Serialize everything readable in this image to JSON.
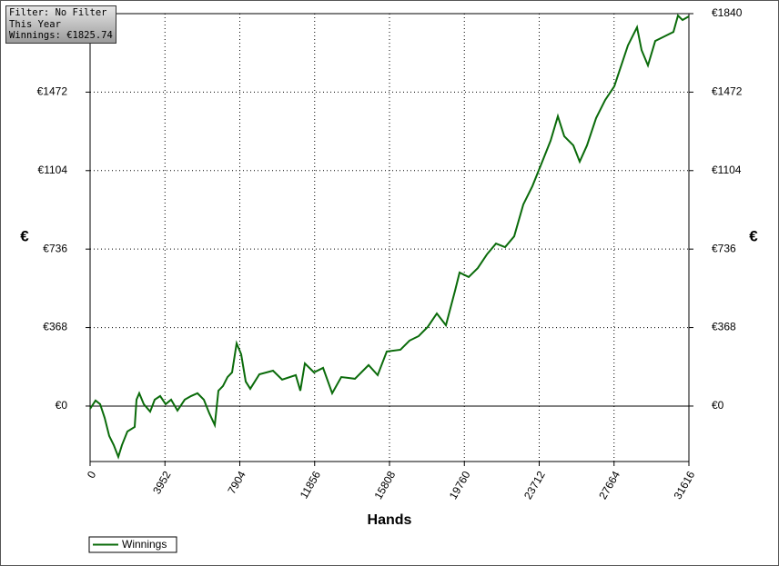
{
  "chart_data": {
    "type": "line",
    "info": [
      "Filter: No Filter",
      "This Year",
      "Winnings: €1825.74"
    ],
    "y_label": "€",
    "x_label": "Hands",
    "xlim": [
      0,
      31616
    ],
    "xticks": [
      0,
      3952,
      7904,
      11856,
      15808,
      19760,
      23712,
      27664,
      31616
    ],
    "ylim": [
      -260,
      1840
    ],
    "yticks": [
      {
        "value": 0,
        "label": "€0"
      },
      {
        "value": 368,
        "label": "€368"
      },
      {
        "value": 736,
        "label": "€736"
      },
      {
        "value": 1104,
        "label": "€1104"
      },
      {
        "value": 1472,
        "label": "€1472"
      },
      {
        "value": 1840,
        "label": "€1840"
      }
    ],
    "grid": true,
    "legend": "bottom-left",
    "x": [
      0,
      288,
      529,
      769,
      1009,
      1249,
      1490,
      1682,
      1970,
      2354,
      2451,
      2595,
      2835,
      3171,
      3412,
      3700,
      3988,
      4277,
      4613,
      4997,
      5334,
      5670,
      6006,
      6295,
      6583,
      6775,
      7015,
      7256,
      7496,
      7736,
      7976,
      8217,
      8457,
      8937,
      9658,
      10139,
      10859,
      11100,
      11340,
      11821,
      12301,
      12782,
      13262,
      13983,
      14703,
      15184,
      15664,
      16385,
      16865,
      17346,
      17826,
      18307,
      18787,
      19268,
      19508,
      19989,
      20469,
      20950,
      21430,
      21911,
      22391,
      22872,
      23352,
      23833,
      24313,
      24697,
      25034,
      25514,
      25850,
      26235,
      26715,
      27195,
      27676,
      27916,
      28397,
      28877,
      29117,
      29454,
      29838,
      30319,
      30799,
      31039,
      31280,
      31616
    ],
    "series": [
      {
        "name": "Winnings",
        "color": "#0a6b0a",
        "values": [
          -13,
          26,
          9,
          -55,
          -140,
          -183,
          -238,
          -183,
          -119,
          -98,
          30,
          60,
          9,
          -26,
          30,
          47,
          9,
          30,
          -21,
          30,
          47,
          60,
          30,
          -34,
          -89,
          72,
          94,
          136,
          158,
          294,
          243,
          115,
          81,
          149,
          166,
          124,
          145,
          72,
          200,
          158,
          179,
          60,
          136,
          128,
          192,
          145,
          256,
          264,
          307,
          328,
          371,
          434,
          379,
          541,
          626,
          605,
          647,
          711,
          762,
          745,
          796,
          945,
          1031,
          1137,
          1244,
          1359,
          1265,
          1222,
          1146,
          1222,
          1350,
          1435,
          1499,
          1563,
          1691,
          1776,
          1669,
          1597,
          1712,
          1733,
          1754,
          1831,
          1810,
          1827
        ]
      }
    ]
  }
}
